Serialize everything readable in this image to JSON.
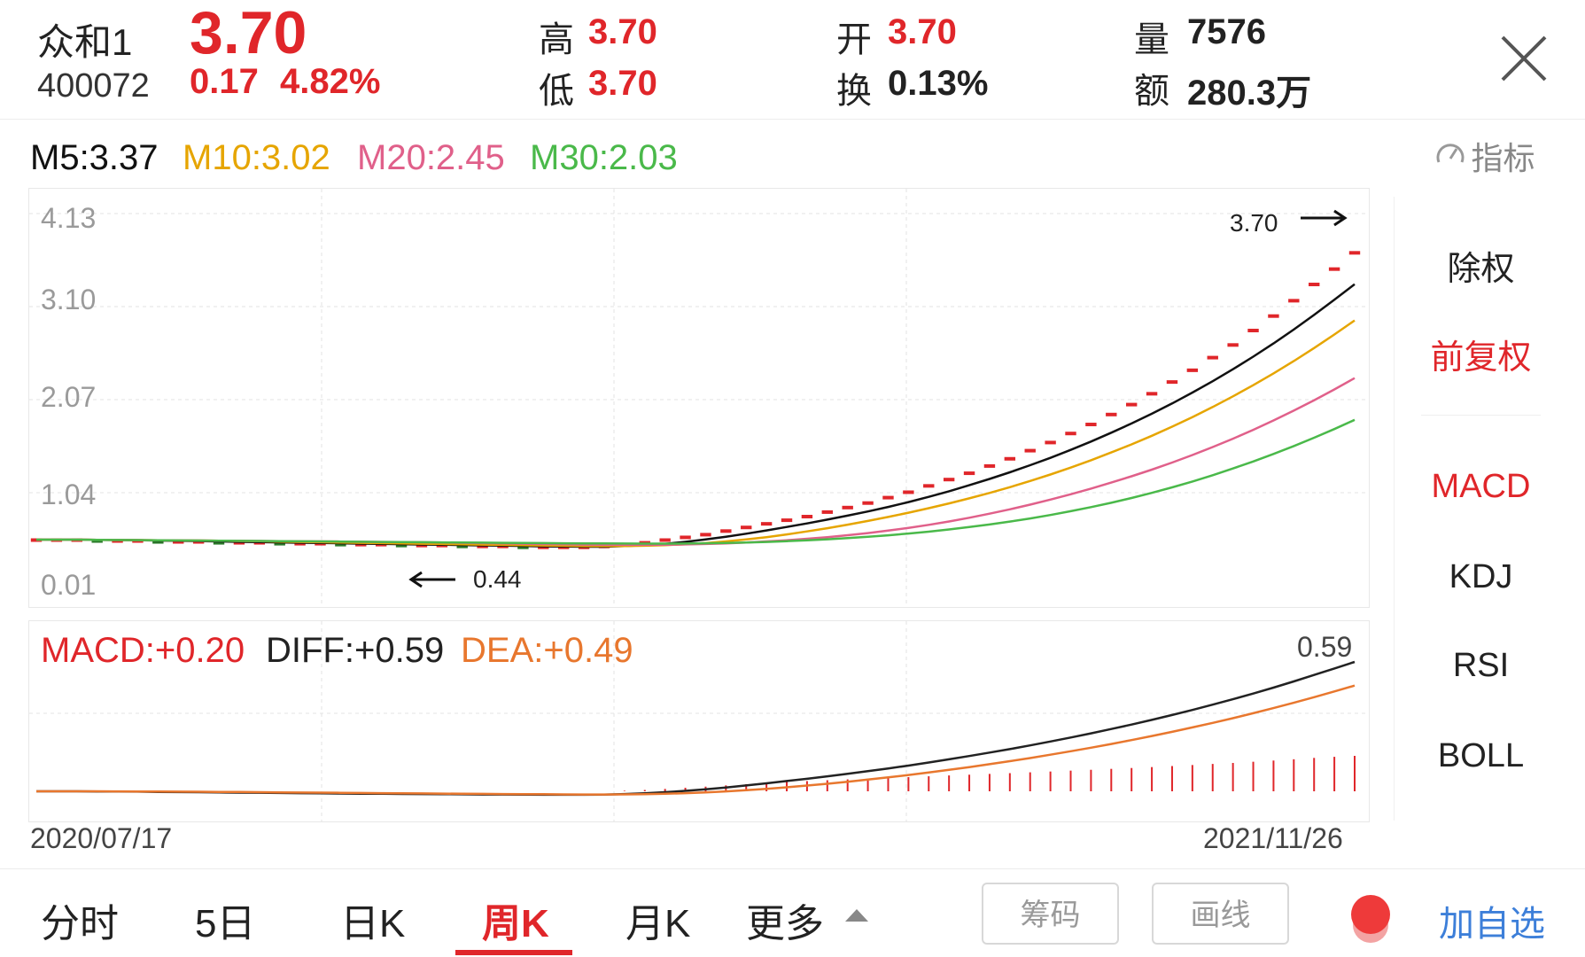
{
  "header": {
    "name": "众和1",
    "code": "400072",
    "price": "3.70",
    "change": "0.17",
    "change_pct": "4.82%",
    "high_label": "高",
    "high": "3.70",
    "low_label": "低",
    "low": "3.70",
    "open_label": "开",
    "open": "3.70",
    "turnover_label": "换",
    "turnover": "0.13%",
    "volume_label": "量",
    "volume": "7576",
    "amount_label": "额",
    "amount": "280.3万"
  },
  "ma_legend": {
    "m5": "M5:3.37",
    "m10": "M10:3.02",
    "m20": "M20:2.45",
    "m30": "M30:2.03"
  },
  "indicator_button": "指标",
  "price_annotations": {
    "max": "3.70",
    "min": "0.44"
  },
  "macd_legend": {
    "macd": "MACD:+0.20",
    "diff": "DIFF:+0.59",
    "dea": "DEA:+0.49",
    "right_value": "0.59"
  },
  "dates": {
    "start": "2020/07/17",
    "end": "2021/11/26"
  },
  "side_panel": [
    "除权",
    "前复权",
    "MACD",
    "KDJ",
    "RSI",
    "BOLL"
  ],
  "bottom_tabs": [
    "分时",
    "5日",
    "日K",
    "周K",
    "月K",
    "更多"
  ],
  "bottom_buttons": {
    "chips": "筹码",
    "draw": "画线",
    "add": "加自选"
  },
  "colors": {
    "up": "#e0262a",
    "down": "#2a7a2a",
    "m5": "#111111",
    "m10": "#e6a500",
    "m20": "#e0608a",
    "m30": "#4ab94a",
    "diff": "#222222",
    "dea": "#e8772e",
    "active_tab": "#e0262a",
    "add_button": "#3d7fd9"
  },
  "chart_data": [
    {
      "type": "candlestick",
      "title": "周K",
      "x_range": [
        "2020/07/17",
        "2021/11/26"
      ],
      "y_ticks": [
        "4.13",
        "3.10",
        "2.07",
        "1.04",
        "0.01"
      ],
      "ylim": [
        0.01,
        4.13
      ],
      "grid": true,
      "candles_close": [
        0.52,
        0.52,
        0.52,
        0.51,
        0.51,
        0.51,
        0.5,
        0.5,
        0.5,
        0.49,
        0.49,
        0.49,
        0.48,
        0.48,
        0.48,
        0.47,
        0.47,
        0.47,
        0.46,
        0.46,
        0.46,
        0.45,
        0.45,
        0.45,
        0.44,
        0.44,
        0.44,
        0.44,
        0.45,
        0.47,
        0.49,
        0.52,
        0.55,
        0.58,
        0.62,
        0.66,
        0.7,
        0.74,
        0.78,
        0.83,
        0.88,
        0.93,
        0.99,
        1.05,
        1.12,
        1.19,
        1.26,
        1.34,
        1.42,
        1.51,
        1.6,
        1.7,
        1.8,
        1.91,
        2.02,
        2.14,
        2.27,
        2.4,
        2.54,
        2.68,
        2.84,
        3.0,
        3.17,
        3.35,
        3.52,
        3.7
      ],
      "series": [
        {
          "name": "M5",
          "last": 3.37
        },
        {
          "name": "M10",
          "last": 3.02
        },
        {
          "name": "M20",
          "last": 2.45
        },
        {
          "name": "M30",
          "last": 2.03
        }
      ],
      "max_label": 3.7,
      "min_label": 0.44
    },
    {
      "type": "line",
      "title": "MACD",
      "series": [
        {
          "name": "DIFF",
          "last": 0.59
        },
        {
          "name": "DEA",
          "last": 0.49
        },
        {
          "name": "MACD",
          "last": 0.2
        }
      ]
    }
  ]
}
